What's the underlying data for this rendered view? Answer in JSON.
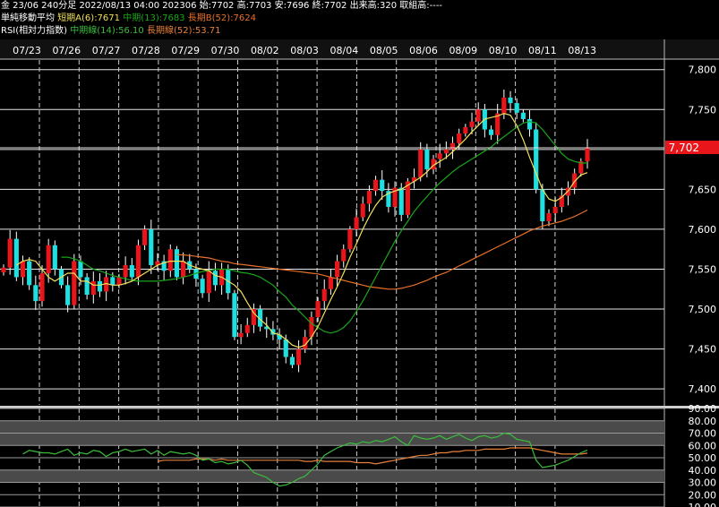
{
  "header": {
    "line1": "金 23/06 240分足 2022/08/13 04:00 202306 始:7702 高:7703 安:7696 終:7702 出来高:320 取組高:----",
    "ma_title": "単純移動平均",
    "ma_short": "短期A(6):7671",
    "ma_mid": "中期(13):7683",
    "ma_long": "長期B(52):7624",
    "rsi_title": "RSI(相対力指数)",
    "rsi_mid": "中期線(14):56.10",
    "rsi_long": "長期線(52):53.71"
  },
  "colors": {
    "up": "#e8161b",
    "down": "#1fdfe0",
    "ma_short": "#f2e05c",
    "ma_mid": "#1aa61a",
    "ma_long": "#e8702a",
    "rsi_mid": "#3bbd3b",
    "rsi_long": "#e8803a",
    "price_tag": "#e8161b"
  },
  "chart_data": [
    {
      "type": "candlestick",
      "x_labels": [
        "07/23",
        "07/26",
        "07/27",
        "07/28",
        "07/29",
        "07/30",
        "08/02",
        "08/03",
        "08/04",
        "08/05",
        "08/06",
        "08/09",
        "08/10",
        "08/11",
        "08/13"
      ],
      "yticks": [
        7400,
        7450,
        7500,
        7550,
        7600,
        7650,
        7700,
        7750,
        7800
      ],
      "ylim": [
        7380,
        7812
      ],
      "last_price_label": "7,702",
      "last_price": 7702,
      "close": [
        7552,
        7588,
        7540,
        7560,
        7530,
        7510,
        7545,
        7580,
        7550,
        7530,
        7505,
        7560,
        7540,
        7518,
        7535,
        7522,
        7540,
        7530,
        7540,
        7555,
        7540,
        7580,
        7600,
        7555,
        7560,
        7548,
        7575,
        7540,
        7560,
        7550,
        7538,
        7520,
        7548,
        7530,
        7550,
        7520,
        7465,
        7470,
        7480,
        7500,
        7478,
        7475,
        7468,
        7462,
        7440,
        7430,
        7450,
        7465,
        7490,
        7510,
        7525,
        7540,
        7560,
        7575,
        7600,
        7615,
        7632,
        7648,
        7662,
        7648,
        7628,
        7652,
        7618,
        7660,
        7665,
        7700,
        7675,
        7688,
        7695,
        7700,
        7708,
        7720,
        7728,
        7735,
        7750,
        7725,
        7718,
        7745,
        7765,
        7758,
        7746,
        7738,
        7725,
        7650,
        7610,
        7620,
        7628,
        7642,
        7652,
        7670,
        7685,
        7702
      ],
      "ma_short": [
        7555,
        7560,
        7562,
        7560,
        7550,
        7540,
        7535,
        7540,
        7545,
        7545,
        7535,
        7535,
        7530,
        7530,
        7532,
        7530,
        7530,
        7532,
        7535,
        7540,
        7545,
        7550,
        7555,
        7558,
        7560,
        7560,
        7560,
        7555,
        7552,
        7550,
        7548,
        7542,
        7540,
        7535,
        7530,
        7522,
        7508,
        7495,
        7487,
        7480,
        7470,
        7468,
        7462,
        7455,
        7452,
        7455,
        7465,
        7478,
        7495,
        7512,
        7528,
        7545,
        7565,
        7582,
        7600,
        7616,
        7630,
        7640,
        7645,
        7648,
        7650,
        7655,
        7660,
        7665,
        7672,
        7680,
        7685,
        7690,
        7697,
        7705,
        7713,
        7722,
        7730,
        7738,
        7740,
        7742,
        7745,
        7743,
        7730,
        7712,
        7690,
        7670,
        7650,
        7638,
        7635,
        7640,
        7648,
        7660,
        7668,
        7671
      ],
      "ma_mid": [
        7565,
        7565,
        7563,
        7560,
        7555,
        7550,
        7548,
        7545,
        7542,
        7540,
        7538,
        7536,
        7535,
        7535,
        7535,
        7535,
        7536,
        7537,
        7538,
        7540,
        7542,
        7545,
        7547,
        7548,
        7550,
        7550,
        7550,
        7548,
        7546,
        7545,
        7543,
        7540,
        7535,
        7530,
        7522,
        7515,
        7505,
        7498,
        7490,
        7482,
        7477,
        7472,
        7470,
        7472,
        7477,
        7485,
        7497,
        7510,
        7525,
        7540,
        7555,
        7570,
        7585,
        7598,
        7610,
        7622,
        7632,
        7641,
        7650,
        7658,
        7665,
        7672,
        7678,
        7683,
        7688,
        7693,
        7698,
        7703,
        7710,
        7716,
        7722,
        7728,
        7733,
        7735,
        7733,
        7725,
        7715,
        7705,
        7695,
        7688,
        7685,
        7683,
        7683
      ],
      "ma_long": [
        7568,
        7568,
        7567,
        7566,
        7565,
        7564,
        7562,
        7560,
        7559,
        7557,
        7556,
        7555,
        7554,
        7553,
        7552,
        7551,
        7550,
        7549,
        7548,
        7547,
        7546,
        7545,
        7544,
        7542,
        7540,
        7538,
        7536,
        7534,
        7532,
        7530,
        7528,
        7527,
        7526,
        7525,
        7525,
        7526,
        7528,
        7530,
        7533,
        7536,
        7540,
        7543,
        7546,
        7550,
        7554,
        7558,
        7562,
        7566,
        7570,
        7574,
        7578,
        7582,
        7586,
        7590,
        7594,
        7598,
        7601,
        7604,
        7606,
        7608,
        7610,
        7613,
        7616,
        7620,
        7624
      ]
    },
    {
      "type": "line",
      "name": "RSI",
      "yticks": [
        10,
        20,
        30,
        40,
        50,
        60,
        70,
        80,
        90
      ],
      "ytick_labels": [
        "10.00",
        "20.00",
        "30.00",
        "40.00",
        "50.00",
        "60.00",
        "70.00",
        "80.00",
        "90.00"
      ],
      "ylim": [
        10,
        90
      ],
      "rsi_mid": [
        53,
        56,
        55,
        54,
        54,
        53,
        55,
        57,
        52,
        54,
        53,
        56,
        55,
        51,
        54,
        55,
        57,
        55,
        56,
        57,
        53,
        56,
        52,
        55,
        54,
        53,
        54,
        52,
        48,
        49,
        46,
        47,
        45,
        46,
        48,
        44,
        38,
        36,
        34,
        30,
        27,
        28,
        30,
        33,
        35,
        40,
        45,
        52,
        55,
        58,
        60,
        62,
        61,
        63,
        62,
        64,
        63,
        65,
        67,
        63,
        60,
        68,
        66,
        65,
        66,
        68,
        65,
        67,
        69,
        66,
        64,
        67,
        68,
        66,
        67,
        70,
        69,
        65,
        64,
        63,
        48,
        42,
        43,
        44,
        46,
        48,
        51,
        54,
        56.1
      ],
      "rsi_long": [
        47,
        48,
        48,
        48,
        48,
        48,
        49,
        49,
        49,
        48,
        49,
        48,
        48,
        48,
        48,
        48,
        48,
        48,
        48,
        48,
        48,
        48,
        48,
        47,
        47,
        48,
        47,
        47,
        47,
        47,
        47,
        46,
        46,
        46,
        45,
        46,
        47,
        48,
        49,
        50,
        51,
        52,
        52,
        53,
        54,
        54,
        55,
        55,
        56,
        56,
        56,
        57,
        57,
        57,
        57,
        58,
        58,
        58,
        58,
        57,
        56,
        55,
        54,
        53,
        53,
        53,
        53,
        53.71
      ],
      "band_hi": [
        60,
        80
      ],
      "band_lo": [
        30,
        40
      ]
    }
  ]
}
